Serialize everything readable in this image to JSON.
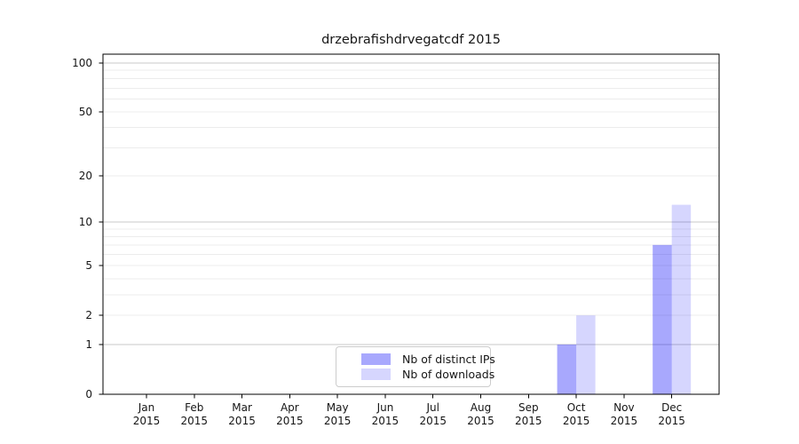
{
  "chart_data": {
    "type": "bar",
    "title": "drzebrafishdrvegatcdf 2015",
    "categories": [
      "Jan",
      "Feb",
      "Mar",
      "Apr",
      "May",
      "Jun",
      "Jul",
      "Aug",
      "Sep",
      "Oct",
      "Nov",
      "Dec"
    ],
    "year_label": "2015",
    "series": [
      {
        "name": "Nb of distinct IPs",
        "color": "rgba(0,0,250,0.34)",
        "values": [
          0,
          0,
          0,
          0,
          0,
          0,
          0,
          0,
          0,
          1,
          0,
          7
        ]
      },
      {
        "name": "Nb of downloads",
        "color": "rgba(0,0,250,0.16)",
        "values": [
          0,
          0,
          0,
          0,
          0,
          0,
          0,
          0,
          0,
          2,
          0,
          13
        ]
      }
    ],
    "xlabel": "",
    "ylabel": "",
    "yscale": "log10(1+y)",
    "ylim": [
      0,
      113
    ],
    "yticks": [
      0,
      1,
      2,
      5,
      10,
      20,
      50,
      100
    ],
    "grid": {
      "on": true,
      "major_lines": [
        1,
        10,
        100
      ],
      "minor_lines": [
        2,
        3,
        4,
        5,
        6,
        7,
        8,
        9,
        20,
        30,
        40,
        50,
        60,
        70,
        80,
        90
      ],
      "major_color": "#c8c8c8",
      "minor_color": "#ececec"
    },
    "legend_position": "lower center inside plot",
    "spine_color": "#000000",
    "text_color": "#161616",
    "background": "#ffffff"
  }
}
